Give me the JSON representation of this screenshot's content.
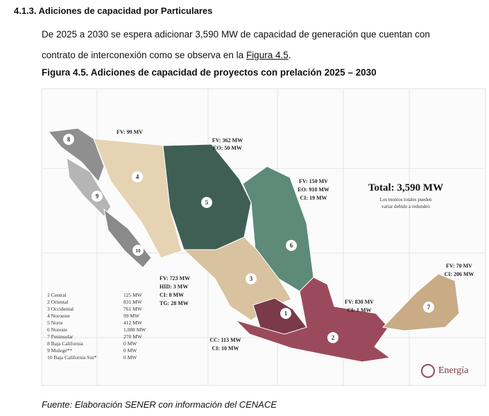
{
  "section": {
    "title": "4.1.3. Adiciones de capacidad por Particulares"
  },
  "paragraph": {
    "line1": "De 2025 a 2030 se espera adicionar 3,590 MW de capacidad de generación que cuentan con",
    "line2_prefix": "contrato de interconexión como se observa en la ",
    "line2_link": "Figura 4.5",
    "line2_suffix": "."
  },
  "figure": {
    "title": "Figura 4.5. Adiciones de capacidad de proyectos con prelación 2025 – 2030",
    "total": "Total: 3,590 MW",
    "note_line1": "Los montos totales pueden",
    "note_line2": "variar debido a redondeo",
    "logo": "Energía",
    "colors": {
      "central": "#7a3a48",
      "oriental": "#9b4a5c",
      "occidental": "#d8c2a0",
      "noroeste": "#e6d3b3",
      "norte": "#3f5f55",
      "noreste": "#5e8a7a",
      "peninsular": "#c9ab86",
      "baja_california": "#8f8f8f",
      "mulege": "#b5b5b5",
      "bcs": "#8a8a8a"
    },
    "annotations": [
      {
        "lines": [
          "FV: 99 MV"
        ]
      },
      {
        "lines": [
          "FV: 362 MW",
          "EO: 50 MW"
        ]
      },
      {
        "lines": [
          "FV: 150 MV",
          "EO: 910 MW",
          "CI: 19 MW"
        ]
      },
      {
        "lines": [
          "FV: 723 MW",
          "HID: 3 MW",
          "CI: 8 MW",
          "TG: 28 MW"
        ]
      },
      {
        "lines": [
          "FV: 830 MV",
          "CI: 1 MW"
        ]
      },
      {
        "lines": [
          "FV: 70 MV",
          "CI: 206 MW"
        ]
      },
      {
        "lines": [
          "CC: 113 MW",
          "CI: 10 MW"
        ]
      }
    ],
    "legend": [
      {
        "name": "1 Central",
        "value": "125 MW"
      },
      {
        "name": "2 Oriental",
        "value": "831 MW"
      },
      {
        "name": "3 Occidental",
        "value": "761 MW"
      },
      {
        "name": "4 Noroeste",
        "value": "99 MW"
      },
      {
        "name": "5 Norte",
        "value": "412 MW"
      },
      {
        "name": "6 Noreste",
        "value": "1,088 MW"
      },
      {
        "name": "7 Peninsular",
        "value": "270 MW"
      },
      {
        "name": "8 Baja California",
        "value": "0 MW"
      },
      {
        "name": "9 Mulegé**",
        "value": "0 MW"
      },
      {
        "name": "10 Baja California Sur*",
        "value": "0 MW"
      }
    ],
    "region_numbers": [
      "1",
      "2",
      "3",
      "4",
      "5",
      "6",
      "7",
      "8",
      "9",
      "10"
    ]
  },
  "caption": "Fuente: Elaboración SENER con información del CENACE"
}
